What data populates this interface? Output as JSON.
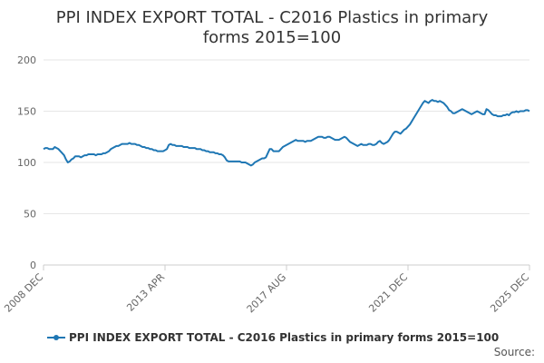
{
  "chart_data": {
    "type": "line",
    "title_lines": [
      "PPI INDEX EXPORT TOTAL - C2016 Plastics in primary",
      "forms 2015=100"
    ],
    "ylim": [
      0,
      200
    ],
    "y_ticks": [
      "0",
      "50",
      "100",
      "150",
      "200"
    ],
    "x_tick_labels": [
      "2008 DEC",
      "2013 APR",
      "2017 AUG",
      "2021 DEC",
      "2025 DEC"
    ],
    "x_range": [
      "2008 DEC",
      "2025 DEC"
    ],
    "grid": true,
    "legend_position": "bottom",
    "series": [
      {
        "name": "PPI INDEX EXPORT TOTAL - C2016 Plastics in primary forms 2015=100",
        "color": "#1f77b4",
        "x_start": "2008 DEC",
        "frequency": "monthly",
        "values": [
          113,
          114,
          114,
          113,
          113,
          113,
          115,
          114,
          113,
          111,
          109,
          107,
          103,
          100,
          101,
          103,
          104,
          106,
          106,
          106,
          105,
          106,
          107,
          107,
          108,
          108,
          108,
          108,
          107,
          108,
          108,
          108,
          109,
          109,
          110,
          111,
          113,
          114,
          115,
          116,
          116,
          117,
          118,
          118,
          118,
          118,
          119,
          118,
          118,
          118,
          117,
          117,
          116,
          115,
          115,
          114,
          114,
          113,
          113,
          112,
          112,
          111,
          111,
          111,
          111,
          112,
          113,
          117,
          118,
          117,
          117,
          116,
          116,
          116,
          116,
          115,
          115,
          115,
          114,
          114,
          114,
          114,
          113,
          113,
          113,
          112,
          112,
          111,
          111,
          110,
          110,
          110,
          109,
          109,
          108,
          108,
          107,
          105,
          102,
          101,
          101,
          101,
          101,
          101,
          101,
          101,
          100,
          100,
          100,
          99,
          98,
          97,
          98,
          100,
          101,
          102,
          103,
          104,
          104,
          105,
          109,
          113,
          113,
          111,
          111,
          111,
          111,
          113,
          115,
          116,
          117,
          118,
          119,
          120,
          121,
          122,
          121,
          121,
          121,
          121,
          120,
          121,
          121,
          121,
          122,
          123,
          124,
          125,
          125,
          125,
          124,
          124,
          125,
          125,
          124,
          123,
          122,
          122,
          122,
          123,
          124,
          125,
          124,
          122,
          120,
          119,
          118,
          117,
          116,
          117,
          118,
          117,
          117,
          117,
          118,
          118,
          117,
          117,
          118,
          120,
          121,
          119,
          118,
          119,
          120,
          122,
          125,
          128,
          130,
          130,
          129,
          128,
          130,
          132,
          133,
          135,
          137,
          140,
          143,
          146,
          149,
          152,
          155,
          158,
          160,
          159,
          158,
          160,
          161,
          160,
          160,
          159,
          160,
          159,
          158,
          156,
          154,
          151,
          150,
          148,
          148,
          149,
          150,
          151,
          152,
          151,
          150,
          149,
          148,
          147,
          148,
          149,
          150,
          149,
          148,
          147,
          147,
          152,
          151,
          149,
          147,
          146,
          146,
          145,
          145,
          145,
          146,
          146,
          147,
          146,
          148,
          149,
          149,
          150,
          149,
          150,
          150,
          150,
          151,
          151,
          150
        ]
      }
    ],
    "source_label": "Source:"
  }
}
